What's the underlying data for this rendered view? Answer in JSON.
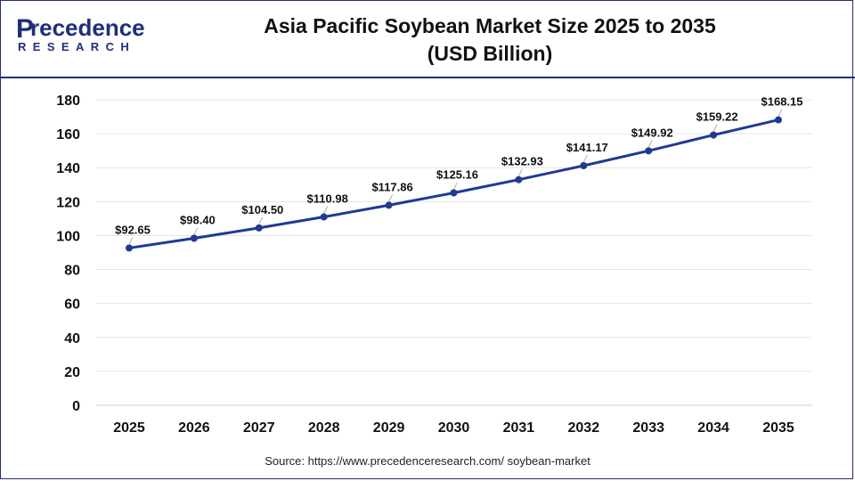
{
  "brand": {
    "name_rest": "recedence",
    "name_initial": "P",
    "sub": "RESEARCH"
  },
  "title_line1": "Asia Pacific Soybean Market Size 2025 to 2035",
  "title_line2": "(USD Billion)",
  "source": "Source: https://www.precedenceresearch.com/ soybean-market",
  "colors": {
    "line": "#1f3a93",
    "brand": "#1f2f7a",
    "grid": "#e6e6e6"
  },
  "chart_data": {
    "type": "line",
    "title": "Asia Pacific Soybean Market Size 2025 to 2035 (USD Billion)",
    "xlabel": "",
    "ylabel": "",
    "categories": [
      "2025",
      "2026",
      "2027",
      "2028",
      "2029",
      "2030",
      "2031",
      "2032",
      "2033",
      "2034",
      "2035"
    ],
    "values": [
      92.65,
      98.4,
      104.5,
      110.98,
      117.86,
      125.16,
      132.93,
      141.17,
      149.92,
      159.22,
      168.15
    ],
    "data_labels": [
      "$92.65",
      "$98.40",
      "$104.50",
      "$110.98",
      "$117.86",
      "$125.16",
      "$132.93",
      "$141.17",
      "$149.92",
      "$159.22",
      "$168.15"
    ],
    "yticks": [
      0,
      20,
      40,
      60,
      80,
      100,
      120,
      140,
      160,
      180
    ],
    "ylim": [
      0,
      180
    ],
    "grid": true,
    "legend": "none"
  }
}
